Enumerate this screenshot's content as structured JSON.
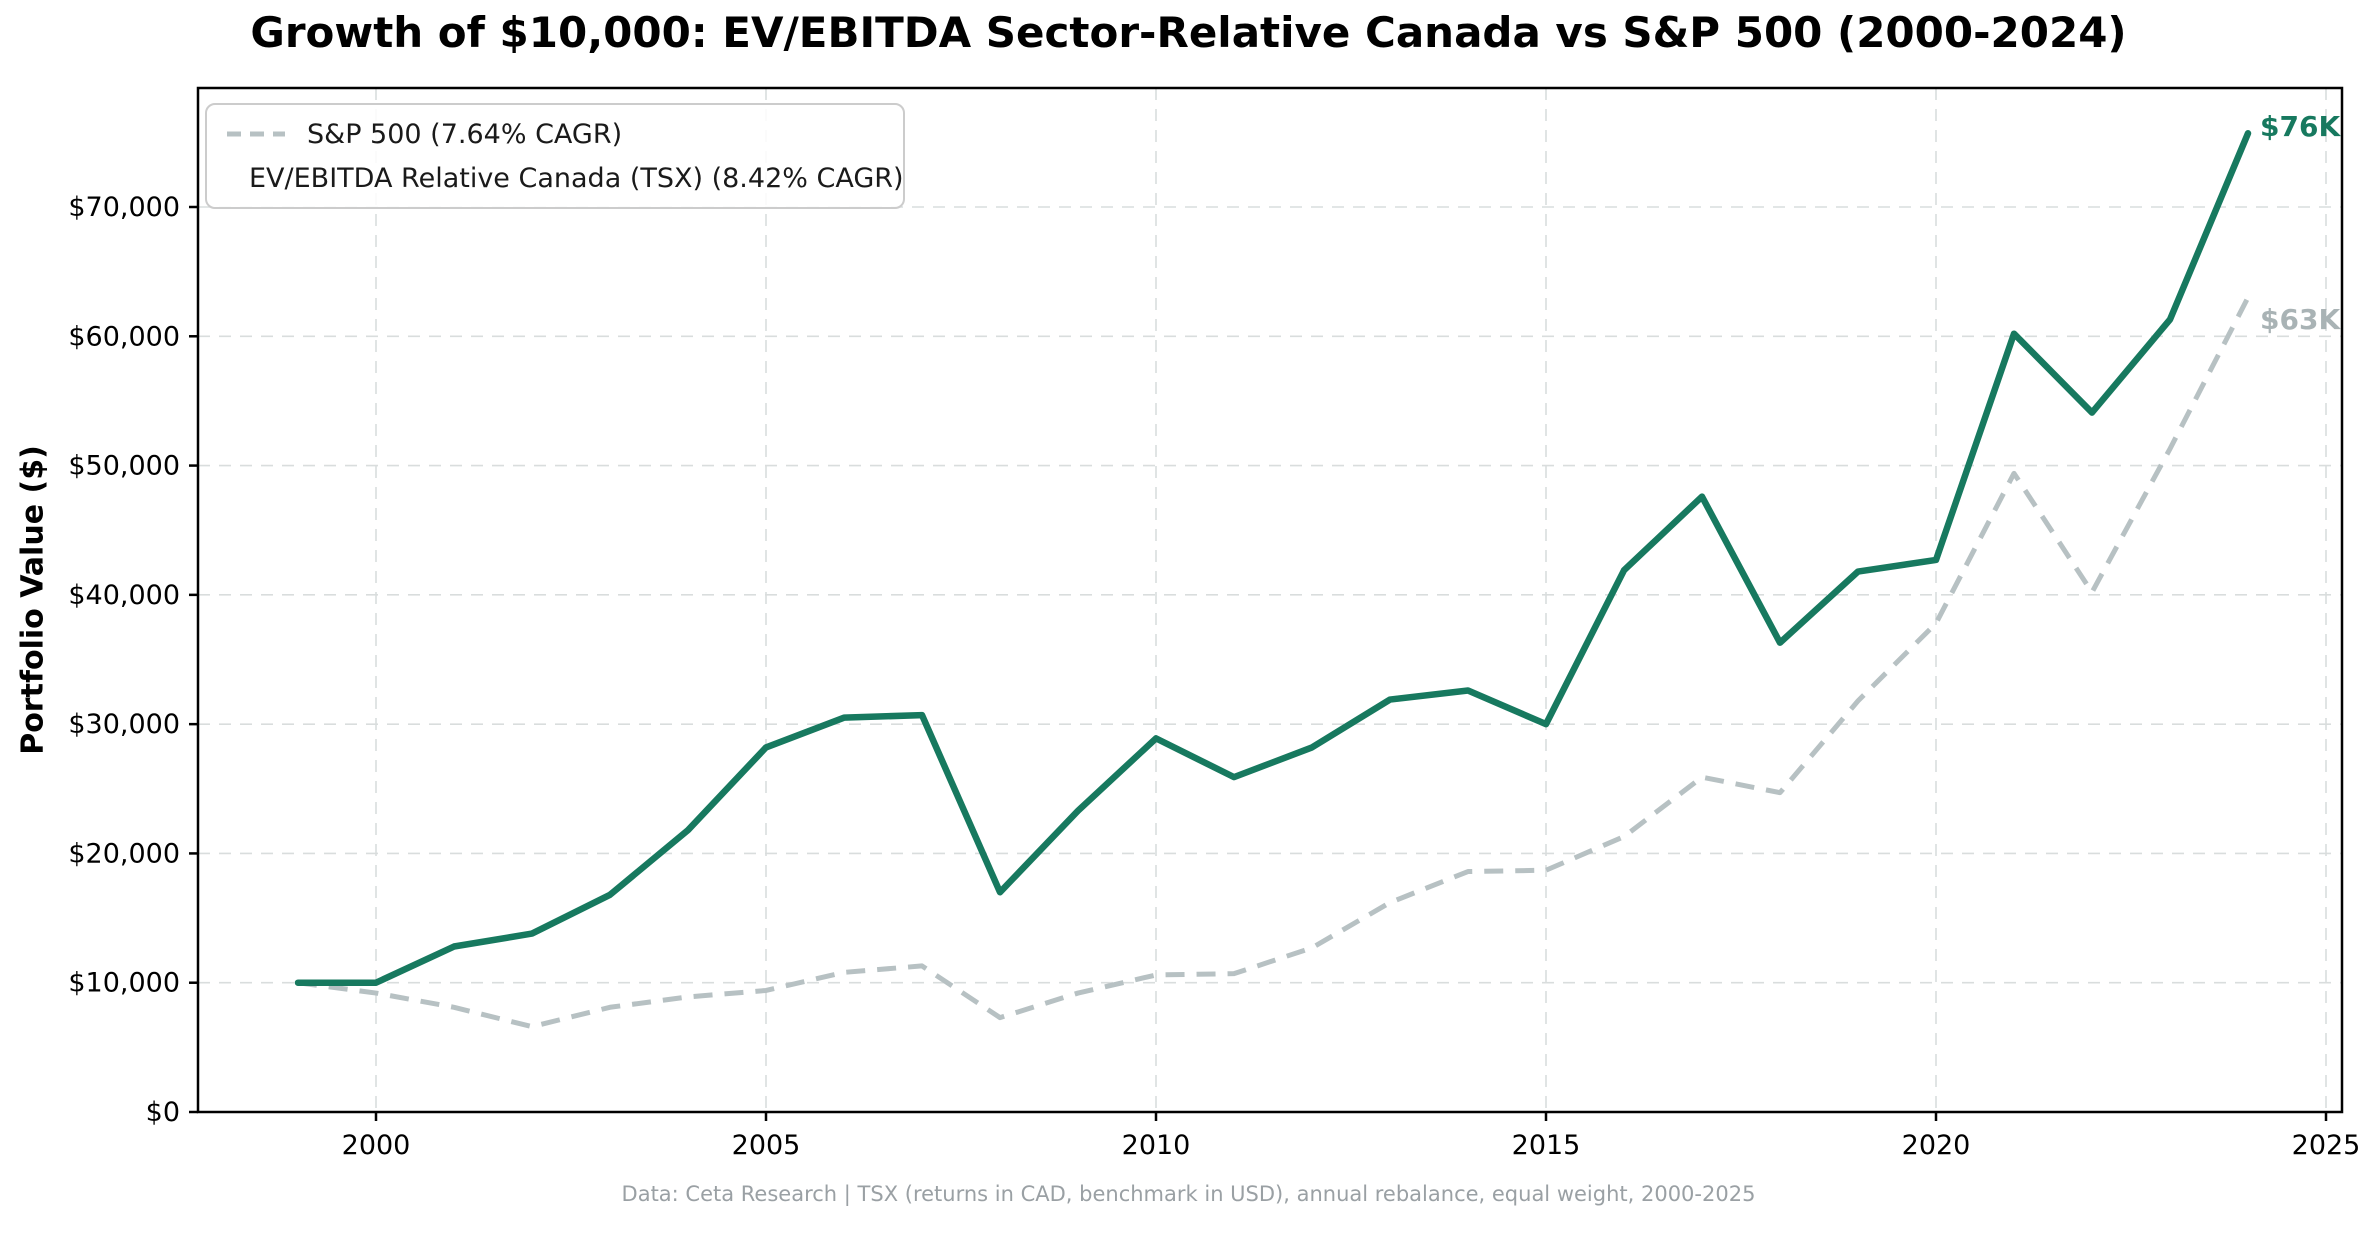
{
  "title": "Growth of $10,000: EV/EBITDA Sector-Relative Canada vs S&P 500 (2000-2024)",
  "y_axis_label": "Portfolio Value ($)",
  "footer": "Data: Ceta Research | TSX (returns in CAD, benchmark in USD), annual rebalance, equal weight, 2000-2025",
  "colors": {
    "ev_line": "#17795f",
    "sp500_line": "#b7c1c3",
    "sp500_label": "#a9b3b5",
    "grid": "#d9dddd",
    "footer_text": "#9aa0a4"
  },
  "legend": {
    "position": "upper left",
    "items": [
      {
        "label": "S&P 500 (7.64% CAGR)",
        "color": "#b7c1c3",
        "dashed": true
      },
      {
        "label": "EV/EBITDA Relative Canada (TSX) (8.42% CAGR)",
        "color": "#17795f",
        "dashed": false
      }
    ]
  },
  "end_labels": {
    "ev": "$76K",
    "sp500": "$63K"
  },
  "chart_data": {
    "type": "line",
    "title": "Growth of $10,000: EV/EBITDA Sector-Relative Canada vs S&P 500 (2000-2024)",
    "xlabel": "",
    "ylabel": "Portfolio Value ($)",
    "grid": true,
    "legend_position": "upper left",
    "ylim": [
      0,
      79400
    ],
    "xlim": [
      1997.7,
      2025.2
    ],
    "x": [
      1999,
      2000,
      2001,
      2002,
      2003,
      2004,
      2005,
      2006,
      2007,
      2008,
      2009,
      2010,
      2011,
      2012,
      2013,
      2014,
      2015,
      2016,
      2017,
      2018,
      2019,
      2020,
      2021,
      2022,
      2023,
      2024
    ],
    "x_ticks": [
      2000,
      2005,
      2010,
      2015,
      2020,
      2025
    ],
    "y_ticks": [
      {
        "value": 0,
        "label": "$0"
      },
      {
        "value": 10000,
        "label": "$10,000"
      },
      {
        "value": 20000,
        "label": "$20,000"
      },
      {
        "value": 30000,
        "label": "$30,000"
      },
      {
        "value": 40000,
        "label": "$40,000"
      },
      {
        "value": 50000,
        "label": "$50,000"
      },
      {
        "value": 60000,
        "label": "$60,000"
      },
      {
        "value": 70000,
        "label": "$70,000"
      }
    ],
    "series": [
      {
        "name": "S&P 500 (7.64% CAGR)",
        "color": "#b7c1c3",
        "style": "dashed",
        "values": [
          10000,
          9200,
          8100,
          6600,
          8100,
          8900,
          9400,
          10800,
          11300,
          7300,
          9200,
          10600,
          10700,
          12700,
          16200,
          18600,
          18700,
          21300,
          25900,
          24700,
          31800,
          37800,
          49400,
          40200,
          51300,
          63000
        ]
      },
      {
        "name": "EV/EBITDA Relative Canada (TSX) (8.42% CAGR)",
        "color": "#17795f",
        "style": "solid",
        "values": [
          10000,
          10000,
          12800,
          13800,
          16800,
          21800,
          28200,
          30500,
          30700,
          17000,
          23300,
          28900,
          25900,
          28200,
          31900,
          32600,
          30000,
          41900,
          47600,
          36300,
          41800,
          42700,
          60200,
          54100,
          61300,
          75700
        ]
      }
    ]
  }
}
